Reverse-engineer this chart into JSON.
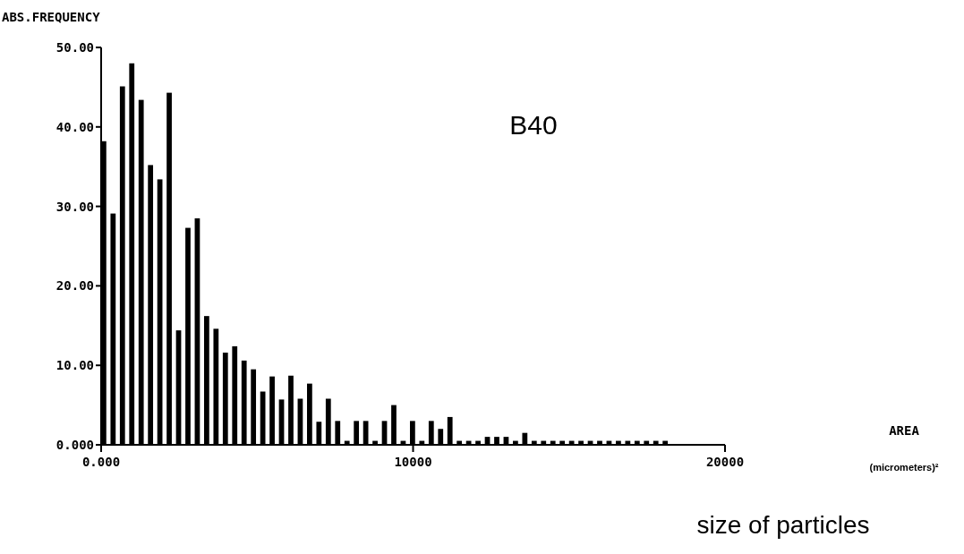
{
  "chart_data": {
    "type": "histogram",
    "title": "B40",
    "ylabel": "ABS.FREQUENCY",
    "annotations": [
      "AREA",
      "(micrometers)²",
      "size of particles"
    ],
    "bins": [
      0,
      300,
      600,
      900,
      1200,
      1500,
      1800,
      2100,
      2400,
      2700,
      3000,
      3300,
      3600,
      3900,
      4200,
      4500,
      4800,
      5100,
      5400,
      5700,
      6000,
      6300,
      6600,
      6900,
      7200,
      7500,
      7800,
      8100,
      8400,
      8700,
      9000,
      9300,
      9600,
      9900,
      10200,
      10500,
      10800,
      11100,
      11400,
      11700,
      12000,
      12300,
      12600,
      12900,
      13200,
      13500,
      13800,
      14100,
      14400,
      14700,
      15000,
      15300,
      15600,
      15900,
      16200,
      16500,
      16800,
      17100,
      17400,
      17700,
      18000,
      18300
    ],
    "values": [
      38.2,
      29.1,
      45.1,
      48.0,
      43.4,
      35.2,
      33.4,
      44.3,
      14.4,
      27.3,
      28.5,
      16.2,
      14.6,
      11.6,
      12.4,
      10.6,
      9.5,
      6.7,
      8.6,
      5.7,
      8.7,
      5.8,
      7.7,
      2.9,
      5.8,
      3.0,
      0.5,
      3.0,
      3.0,
      0.5,
      3.0,
      5.0,
      0.5,
      3.0,
      0.5,
      3.0,
      2.0,
      3.5,
      0.5,
      0.5,
      0.5,
      1.0,
      1.0,
      1.0,
      0.5,
      1.5,
      0.5,
      0.5,
      0.5,
      0.5,
      0.5,
      0.5,
      0.5,
      0.5,
      0.5,
      0.5,
      0.5,
      0.5,
      0.5,
      0.5,
      0.5
    ],
    "color": "#000000",
    "xlim": [
      0,
      20000
    ],
    "xticks": [
      {
        "value": 0,
        "label": "0.000"
      },
      10000,
      20000
    ],
    "ylim": [
      0,
      50
    ],
    "yticks": [
      {
        "value": 0,
        "label": "0.000"
      },
      {
        "value": 10,
        "label": "10.00"
      },
      {
        "value": 20,
        "label": "20.00"
      },
      {
        "value": 30,
        "label": "30.00"
      },
      {
        "value": 40,
        "label": "40.00"
      },
      {
        "value": 50,
        "label": "50.00"
      }
    ]
  }
}
